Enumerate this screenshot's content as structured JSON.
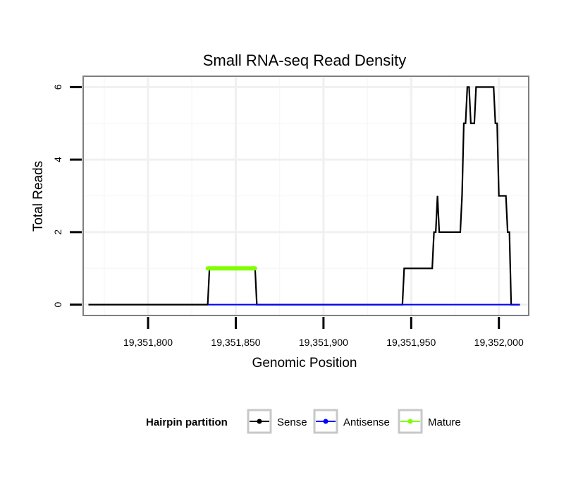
{
  "chart_data": {
    "type": "line",
    "title": "Small RNA-seq Read Density",
    "xlabel": "Genomic Position",
    "ylabel": "Total Reads",
    "xlim": [
      19351763,
      19352017
    ],
    "ylim": [
      -0.3,
      6.3
    ],
    "x_ticks": [
      19351800,
      19351850,
      19351900,
      19351950,
      19352000
    ],
    "x_tick_labels": [
      "19,351,800",
      "19,351,850",
      "19,351,900",
      "19,351,950",
      "19,352,000"
    ],
    "y_ticks": [
      0,
      2,
      4,
      6
    ],
    "y_tick_labels": [
      "0",
      "2",
      "4",
      "6"
    ],
    "grid": true,
    "legend": {
      "title": "Hairpin partition",
      "position": "bottom",
      "entries": [
        "Sense",
        "Antisense",
        "Mature"
      ]
    },
    "series": [
      {
        "name": "Sense",
        "color": "#000000",
        "points": [
          [
            19351766,
            0
          ],
          [
            19351834,
            0
          ],
          [
            19351835,
            1
          ],
          [
            19351861,
            1
          ],
          [
            19351862,
            0
          ],
          [
            19351945,
            0
          ],
          [
            19351946,
            1
          ],
          [
            19351962,
            1
          ],
          [
            19351963,
            2
          ],
          [
            19351964,
            2
          ],
          [
            19351965,
            3
          ],
          [
            19351966,
            2
          ],
          [
            19351978,
            2
          ],
          [
            19351979,
            3
          ],
          [
            19351980,
            5
          ],
          [
            19351981,
            5
          ],
          [
            19351982,
            6
          ],
          [
            19351983,
            6
          ],
          [
            19351984,
            5
          ],
          [
            19351986,
            5
          ],
          [
            19351987,
            6
          ],
          [
            19351997,
            6
          ],
          [
            19351998,
            5
          ],
          [
            19351999,
            5
          ],
          [
            19352000,
            3
          ],
          [
            19352004,
            3
          ],
          [
            19352005,
            2
          ],
          [
            19352006,
            2
          ],
          [
            19352007,
            0
          ],
          [
            19352012,
            0
          ]
        ]
      },
      {
        "name": "Antisense",
        "color": "#0000ff",
        "points": [
          [
            19351834,
            0
          ],
          [
            19352012,
            0
          ]
        ]
      },
      {
        "name": "Mature",
        "color": "#7fff00",
        "points": [
          [
            19351834,
            1
          ],
          [
            19351861,
            1
          ]
        ]
      }
    ]
  }
}
